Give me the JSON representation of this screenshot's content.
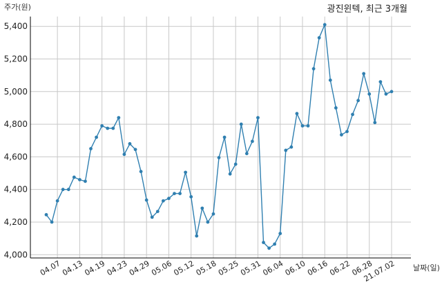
{
  "chart_data": {
    "type": "line",
    "title": "광진윈텍, 최근 3개월",
    "ylabel": "주가(원)",
    "xlabel": "날짜(일)",
    "ylim": [
      3980,
      5460
    ],
    "yticks": [
      4000,
      4200,
      4400,
      4600,
      4800,
      5000,
      5200,
      5400
    ],
    "ytick_labels": [
      "4,000",
      "4,200",
      "4,400",
      "4,600",
      "4,800",
      "5,000",
      "5,200",
      "5,400"
    ],
    "xtick_labels": [
      "04.07",
      "04.13",
      "04.19",
      "04.23",
      "04.29",
      "05.06",
      "05.12",
      "05.18",
      "05.25",
      "05.31",
      "06.04",
      "06.10",
      "06.16",
      "06.22",
      "06.28",
      "21.07.02"
    ],
    "xtick_index": [
      2,
      6,
      10,
      14,
      18,
      22,
      26,
      30,
      34,
      38,
      42,
      46,
      50,
      54,
      58,
      62
    ],
    "grid": true,
    "line_color": "#2f7fb0",
    "series": [
      {
        "values": [
          4245,
          4200,
          4330,
          4400,
          4400,
          4475,
          4460,
          4450,
          4650,
          4720,
          4790,
          4775,
          4775,
          4840,
          4615,
          4680,
          4645,
          4510,
          4335,
          4230,
          4265,
          4330,
          4345,
          4375,
          4375,
          4505,
          4355,
          4115,
          4285,
          4200,
          4250,
          4595,
          4720,
          4495,
          4555,
          4800,
          4620,
          4695,
          4840,
          4075,
          4040,
          4065,
          4130,
          4640,
          4660,
          4865,
          4790,
          4790,
          5140,
          5330,
          5410,
          5070,
          4900,
          4735,
          4755,
          4860,
          4945,
          5110,
          4985,
          4810,
          5060,
          4985,
          5000
        ]
      }
    ]
  }
}
